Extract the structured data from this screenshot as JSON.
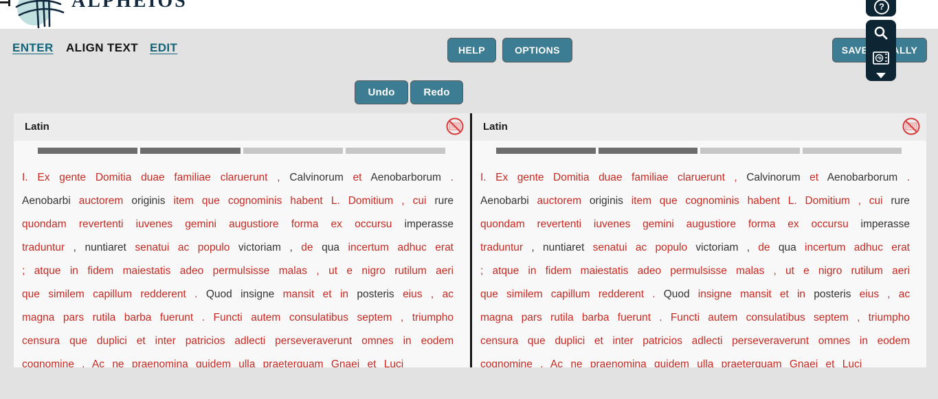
{
  "header": {
    "logo_text": "ALPHEIOS",
    "nav": [
      {
        "label": "ENTER"
      },
      {
        "label": "ALIGN TEXT"
      },
      {
        "label": "EDIT"
      }
    ],
    "help_button": "HELP",
    "options_button": "OPTIONS",
    "save_button": "SAVE LOCALLY"
  },
  "history": {
    "undo_button": "Undo",
    "redo_button": "Redo"
  },
  "toolbar": {
    "icons": [
      "help-circle-icon",
      "search-icon",
      "reading-tools-icon",
      "chevron-down-icon"
    ]
  },
  "colors": {
    "button_teal": "#3d7d94",
    "link_teal": "#11657b",
    "toolbar_navy": "#0e2534",
    "logo_navy": "#12293e",
    "logo_circle": "#bfe0df",
    "token_red": "#c62a22",
    "token_black": "#333333",
    "segment_dark": "#6d6d6d",
    "segment_light": "#c6c6c6",
    "panel_header_bg": "#ececec",
    "panel_body_bg": "#f8f8f8",
    "page_bg": "#e2e2e2",
    "no_edit_red": "#d93b3b"
  },
  "panels": [
    {
      "language_label": "Latin",
      "no_edit_icon": "no-edit-icon",
      "segments": [
        "dark",
        "dark",
        "light",
        "light"
      ],
      "tokens": [
        [
          "I.",
          "r"
        ],
        [
          "Ex",
          "r"
        ],
        [
          "gente",
          "r"
        ],
        [
          "Domitia",
          "r"
        ],
        [
          "duae",
          "r"
        ],
        [
          "familiae",
          "r"
        ],
        [
          "claruerunt",
          "r"
        ],
        [
          ",",
          "r"
        ],
        [
          "Calvinorum",
          "b"
        ],
        [
          "et",
          "r"
        ],
        [
          "Aenobarborum",
          "b"
        ],
        [
          ".",
          "r"
        ],
        [
          "Aenobarbi",
          "b"
        ],
        [
          "auctorem",
          "r"
        ],
        [
          "originis",
          "b"
        ],
        [
          "item",
          "r"
        ],
        [
          "que",
          "r"
        ],
        [
          "cognominis",
          "r"
        ],
        [
          "habent",
          "r"
        ],
        [
          "L.",
          "r"
        ],
        [
          "Domitium",
          "r"
        ],
        [
          ",",
          "r"
        ],
        [
          "cui",
          "r"
        ],
        [
          "rure",
          "b"
        ],
        [
          "quondam",
          "r"
        ],
        [
          "revertenti",
          "r"
        ],
        [
          "iuvenes",
          "r"
        ],
        [
          "gemini",
          "r"
        ],
        [
          "augustiore",
          "r"
        ],
        [
          "forma",
          "r"
        ],
        [
          "ex",
          "r"
        ],
        [
          "occursu",
          "r"
        ],
        [
          "imperasse",
          "b"
        ],
        [
          "traduntur",
          "r"
        ],
        [
          ",",
          "b"
        ],
        [
          "nuntiaret",
          "b"
        ],
        [
          "senatui",
          "r"
        ],
        [
          "ac",
          "r"
        ],
        [
          "populo",
          "r"
        ],
        [
          "victoriam",
          "b"
        ],
        [
          ",",
          "b"
        ],
        [
          "de",
          "r"
        ],
        [
          "qua",
          "b"
        ],
        [
          "incertum",
          "r"
        ],
        [
          "adhuc",
          "r"
        ],
        [
          "erat",
          "r"
        ],
        [
          ";",
          "r"
        ],
        [
          "atque",
          "r"
        ],
        [
          "in",
          "r"
        ],
        [
          "fidem",
          "r"
        ],
        [
          "maiestatis",
          "r"
        ],
        [
          "adeo",
          "r"
        ],
        [
          "permulsisse",
          "r"
        ],
        [
          "malas",
          "r"
        ],
        [
          ",",
          "r"
        ],
        [
          "ut",
          "r"
        ],
        [
          "e",
          "r"
        ],
        [
          "nigro",
          "r"
        ],
        [
          "rutilum",
          "r"
        ],
        [
          "aeri",
          "r"
        ],
        [
          "que",
          "r"
        ],
        [
          "similem",
          "r"
        ],
        [
          "capillum",
          "r"
        ],
        [
          "redderent",
          "r"
        ],
        [
          ".",
          "r"
        ],
        [
          "Quod",
          "b"
        ],
        [
          "insigne",
          "b"
        ],
        [
          "mansit",
          "r"
        ],
        [
          "et",
          "r"
        ],
        [
          "in",
          "r"
        ],
        [
          "posteris",
          "b"
        ],
        [
          "eius",
          "r"
        ],
        [
          ",",
          "r"
        ],
        [
          "ac",
          "r"
        ],
        [
          "magna",
          "r"
        ],
        [
          "pars",
          "r"
        ],
        [
          "rutila",
          "r"
        ],
        [
          "barba",
          "r"
        ],
        [
          "fuerunt",
          "r"
        ],
        [
          ".",
          "r"
        ],
        [
          "Functi",
          "r"
        ],
        [
          "autem",
          "r"
        ],
        [
          "consulatibus",
          "r"
        ],
        [
          "septem",
          "r"
        ],
        [
          ",",
          "r"
        ],
        [
          "triumpho",
          "r"
        ],
        [
          "censura",
          "r"
        ],
        [
          "que",
          "r"
        ],
        [
          "duplici",
          "r"
        ],
        [
          "et",
          "r"
        ],
        [
          "inter",
          "r"
        ],
        [
          "patricios",
          "r"
        ],
        [
          "adlecti",
          "r"
        ],
        [
          "perseveraverunt",
          "r"
        ],
        [
          "omnes",
          "r"
        ],
        [
          "in",
          "r"
        ],
        [
          "eodem",
          "r"
        ],
        [
          "cognomine",
          "r"
        ],
        [
          ".",
          "r"
        ],
        [
          "Ac",
          "r"
        ],
        [
          "ne",
          "r"
        ],
        [
          "praenomina",
          "r"
        ],
        [
          "quidem",
          "r"
        ],
        [
          "ulla",
          "r"
        ],
        [
          "praeterquam",
          "r"
        ],
        [
          "Gnaei",
          "r"
        ],
        [
          "et",
          "r"
        ],
        [
          "Luci",
          "r"
        ]
      ]
    },
    {
      "language_label": "Latin",
      "no_edit_icon": "no-edit-icon",
      "segments": [
        "dark",
        "dark",
        "light",
        "light"
      ],
      "tokens": [
        [
          "I.",
          "r"
        ],
        [
          "Ex",
          "r"
        ],
        [
          "gente",
          "r"
        ],
        [
          "Domitia",
          "r"
        ],
        [
          "duae",
          "r"
        ],
        [
          "familiae",
          "r"
        ],
        [
          "claruerunt",
          "r"
        ],
        [
          ",",
          "r"
        ],
        [
          "Calvinorum",
          "b"
        ],
        [
          "et",
          "r"
        ],
        [
          "Aenobarborum",
          "b"
        ],
        [
          ".",
          "r"
        ],
        [
          "Aenobarbi",
          "b"
        ],
        [
          "auctorem",
          "r"
        ],
        [
          "originis",
          "b"
        ],
        [
          "item",
          "r"
        ],
        [
          "que",
          "r"
        ],
        [
          "cognominis",
          "r"
        ],
        [
          "habent",
          "r"
        ],
        [
          "L.",
          "r"
        ],
        [
          "Domitium",
          "r"
        ],
        [
          ",",
          "r"
        ],
        [
          "cui",
          "r"
        ],
        [
          "rure",
          "b"
        ],
        [
          "quondam",
          "r"
        ],
        [
          "revertenti",
          "r"
        ],
        [
          "iuvenes",
          "r"
        ],
        [
          "gemini",
          "r"
        ],
        [
          "augustiore",
          "r"
        ],
        [
          "forma",
          "r"
        ],
        [
          "ex",
          "r"
        ],
        [
          "occursu",
          "r"
        ],
        [
          "imperasse",
          "b"
        ],
        [
          "traduntur",
          "r"
        ],
        [
          ",",
          "b"
        ],
        [
          "nuntiaret",
          "b"
        ],
        [
          "senatui",
          "r"
        ],
        [
          "ac",
          "r"
        ],
        [
          "populo",
          "r"
        ],
        [
          "victoriam",
          "b"
        ],
        [
          ",",
          "b"
        ],
        [
          "de",
          "r"
        ],
        [
          "qua",
          "b"
        ],
        [
          "incertum",
          "r"
        ],
        [
          "adhuc",
          "r"
        ],
        [
          "erat",
          "r"
        ],
        [
          ";",
          "r"
        ],
        [
          "atque",
          "r"
        ],
        [
          "in",
          "r"
        ],
        [
          "fidem",
          "r"
        ],
        [
          "maiestatis",
          "r"
        ],
        [
          "adeo",
          "r"
        ],
        [
          "permulsisse",
          "r"
        ],
        [
          "malas",
          "r"
        ],
        [
          ",",
          "r"
        ],
        [
          "ut",
          "r"
        ],
        [
          "e",
          "r"
        ],
        [
          "nigro",
          "r"
        ],
        [
          "rutilum",
          "r"
        ],
        [
          "aeri",
          "r"
        ],
        [
          "que",
          "r"
        ],
        [
          "similem",
          "r"
        ],
        [
          "capillum",
          "r"
        ],
        [
          "redderent",
          "r"
        ],
        [
          ".",
          "r"
        ],
        [
          "Quod",
          "b"
        ],
        [
          "insigne",
          "r"
        ],
        [
          "mansit",
          "r"
        ],
        [
          "et",
          "r"
        ],
        [
          "in",
          "r"
        ],
        [
          "posteris",
          "b"
        ],
        [
          "eius",
          "r"
        ],
        [
          ",",
          "r"
        ],
        [
          "ac",
          "r"
        ],
        [
          "magna",
          "r"
        ],
        [
          "pars",
          "r"
        ],
        [
          "rutila",
          "r"
        ],
        [
          "barba",
          "r"
        ],
        [
          "fuerunt",
          "r"
        ],
        [
          ".",
          "r"
        ],
        [
          "Functi",
          "r"
        ],
        [
          "autem",
          "r"
        ],
        [
          "consulatibus",
          "r"
        ],
        [
          "septem",
          "r"
        ],
        [
          ",",
          "r"
        ],
        [
          "triumpho",
          "r"
        ],
        [
          "censura",
          "r"
        ],
        [
          "que",
          "r"
        ],
        [
          "duplici",
          "r"
        ],
        [
          "et",
          "r"
        ],
        [
          "inter",
          "r"
        ],
        [
          "patricios",
          "r"
        ],
        [
          "adlecti",
          "r"
        ],
        [
          "perseveraverunt",
          "r"
        ],
        [
          "omnes",
          "r"
        ],
        [
          "in",
          "r"
        ],
        [
          "eodem",
          "r"
        ],
        [
          "cognomine",
          "r"
        ],
        [
          ".",
          "r"
        ],
        [
          "Ac",
          "r"
        ],
        [
          "ne",
          "r"
        ],
        [
          "praenomina",
          "r"
        ],
        [
          "quidem",
          "r"
        ],
        [
          "ulla",
          "r"
        ],
        [
          "praeterquam",
          "r"
        ],
        [
          "Gnaei",
          "r"
        ],
        [
          "et",
          "r"
        ],
        [
          "Luci",
          "r"
        ]
      ]
    }
  ]
}
